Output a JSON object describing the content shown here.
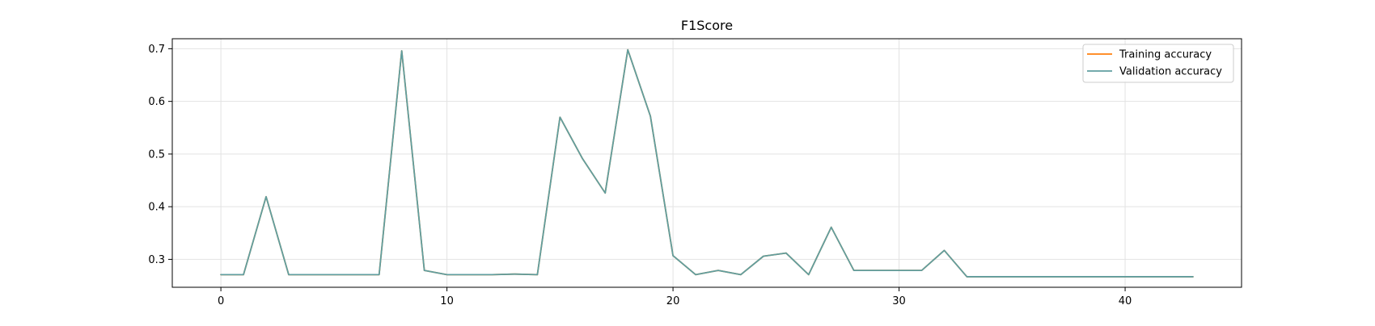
{
  "chart_data": {
    "type": "line",
    "title": "F1Score",
    "xlabel": "",
    "ylabel": "",
    "xlim": [
      -2.15,
      45.15
    ],
    "ylim": [
      0.247,
      0.719
    ],
    "xticks": [
      0,
      10,
      20,
      30,
      40
    ],
    "yticks": [
      0.3,
      0.4,
      0.5,
      0.6,
      0.7
    ],
    "xtick_labels": [
      "0",
      "10",
      "20",
      "30",
      "40"
    ],
    "ytick_labels": [
      "0.3",
      "0.4",
      "0.5",
      "0.6",
      "0.7"
    ],
    "grid": true,
    "legend_position": "top-right",
    "series": [
      {
        "name": "Training accuracy",
        "color": "#ff7f0e",
        "x": [
          0,
          1,
          2,
          3,
          4,
          5,
          6,
          7,
          8,
          9,
          10,
          11,
          12,
          13,
          14,
          15,
          16,
          17,
          18,
          19,
          20,
          21,
          22,
          23,
          24,
          25,
          26,
          27,
          28,
          29,
          30,
          31,
          32,
          33,
          34,
          35,
          36,
          37,
          38,
          39,
          40,
          41,
          42,
          43
        ],
        "values": [
          0.271,
          0.271,
          0.419,
          0.271,
          0.271,
          0.271,
          0.271,
          0.271,
          0.696,
          0.279,
          0.271,
          0.271,
          0.271,
          0.272,
          0.271,
          0.57,
          0.491,
          0.426,
          0.698,
          0.572,
          0.307,
          0.271,
          0.279,
          0.271,
          0.306,
          0.312,
          0.271,
          0.361,
          0.279,
          0.279,
          0.279,
          0.279,
          0.317,
          0.267,
          0.267,
          0.267,
          0.267,
          0.267,
          0.267,
          0.267,
          0.267,
          0.267,
          0.267,
          0.267
        ]
      },
      {
        "name": "Validation accuracy",
        "color": "#5f9ea0",
        "x": [
          0,
          1,
          2,
          3,
          4,
          5,
          6,
          7,
          8,
          9,
          10,
          11,
          12,
          13,
          14,
          15,
          16,
          17,
          18,
          19,
          20,
          21,
          22,
          23,
          24,
          25,
          26,
          27,
          28,
          29,
          30,
          31,
          32,
          33,
          34,
          35,
          36,
          37,
          38,
          39,
          40,
          41,
          42,
          43
        ],
        "values": [
          0.271,
          0.271,
          0.419,
          0.271,
          0.271,
          0.271,
          0.271,
          0.271,
          0.696,
          0.279,
          0.271,
          0.271,
          0.271,
          0.272,
          0.271,
          0.57,
          0.491,
          0.426,
          0.698,
          0.572,
          0.307,
          0.271,
          0.279,
          0.271,
          0.306,
          0.312,
          0.271,
          0.361,
          0.279,
          0.279,
          0.279,
          0.279,
          0.317,
          0.267,
          0.267,
          0.267,
          0.267,
          0.267,
          0.267,
          0.267,
          0.267,
          0.267,
          0.267,
          0.267
        ]
      }
    ]
  }
}
